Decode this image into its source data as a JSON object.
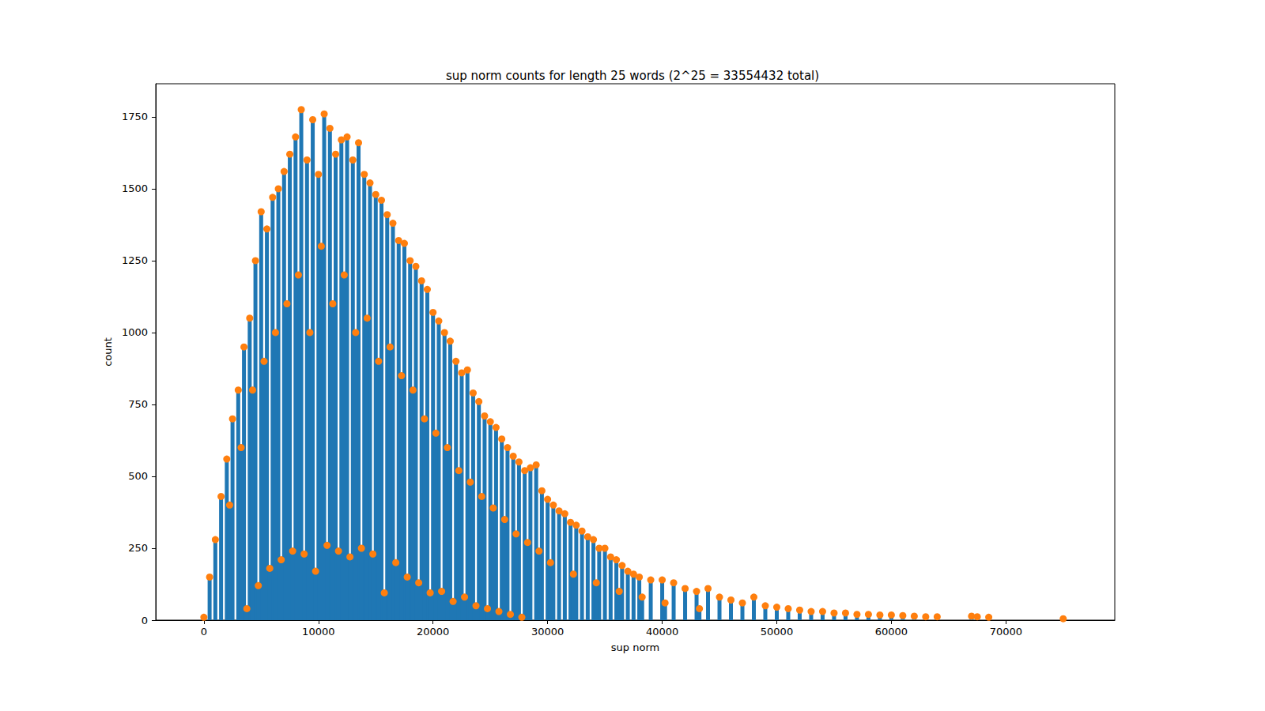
{
  "chart_data": {
    "type": "bar",
    "title": "sup norm counts for length 25 words (2^25 = 33554432 total)",
    "x_label": "sup norm",
    "y_label": "count",
    "xlim": [
      -4200,
      79500
    ],
    "xticks": [
      0,
      10000,
      20000,
      30000,
      40000,
      50000,
      60000,
      70000
    ],
    "ylim": [
      0,
      1865
    ],
    "yticks": [
      0,
      250,
      500,
      750,
      1000,
      1250,
      1500,
      1750
    ],
    "grid": false,
    "x": [
      0,
      500,
      1000,
      1500,
      2000,
      2500,
      3000,
      3500,
      4000,
      4500,
      5000,
      5500,
      6000,
      6500,
      7000,
      7500,
      8000,
      8500,
      9000,
      9500,
      10000,
      10500,
      11000,
      11500,
      12000,
      12500,
      13000,
      13500,
      14000,
      14500,
      15000,
      15500,
      16000,
      16500,
      17000,
      17500,
      18000,
      18500,
      19000,
      19500,
      20000,
      20500,
      21000,
      21500,
      22000,
      22500,
      23000,
      23500,
      24000,
      24500,
      25000,
      25500,
      26000,
      26500,
      27000,
      27500,
      28000,
      28500,
      29000,
      29500,
      30000,
      30500,
      31000,
      31500,
      32000,
      32500,
      33000,
      33500,
      34000,
      34500,
      35000,
      35500,
      36000,
      36500,
      37000,
      37500,
      38000,
      39000,
      40000,
      41000,
      42000,
      43000,
      44000,
      45000,
      46000,
      47000,
      48000,
      49000,
      50000,
      51000,
      52000,
      53000,
      54000,
      55000,
      56000,
      57000,
      58000,
      59000,
      60000,
      61000,
      62000,
      63000,
      64000,
      67000,
      67500,
      68500,
      75000,
      2250,
      3250,
      4250,
      5250,
      6250,
      7250,
      8250,
      9250,
      10250,
      11250,
      12250,
      13250,
      14250,
      15250,
      16250,
      17250,
      18250,
      19250,
      20250,
      21250,
      22250,
      23250,
      24250,
      25250,
      26250,
      27250,
      28250,
      29250,
      30250,
      32250,
      34250,
      36250,
      38250,
      40250,
      43250,
      3750,
      4750,
      5750,
      6750,
      7750,
      8750,
      9750,
      10750,
      11750,
      12750,
      13750,
      14750,
      15750,
      16750,
      17750,
      18750,
      19750,
      20750,
      21750,
      22750,
      23750,
      24750,
      25750,
      26750,
      27750
    ],
    "series": [
      {
        "type": "bar",
        "color": "#1f77b4",
        "values": [
          10,
          150,
          280,
          430,
          560,
          700,
          800,
          950,
          1050,
          1250,
          1420,
          1360,
          1470,
          1500,
          1560,
          1620,
          1680,
          1775,
          1600,
          1740,
          1550,
          1760,
          1710,
          1620,
          1670,
          1680,
          1600,
          1660,
          1550,
          1520,
          1480,
          1460,
          1410,
          1380,
          1320,
          1310,
          1250,
          1230,
          1180,
          1150,
          1070,
          1040,
          1000,
          970,
          900,
          860,
          870,
          790,
          760,
          710,
          690,
          670,
          630,
          600,
          570,
          550,
          520,
          530,
          540,
          450,
          420,
          400,
          380,
          370,
          340,
          330,
          310,
          290,
          280,
          250,
          250,
          220,
          210,
          190,
          170,
          160,
          150,
          140,
          140,
          130,
          110,
          100,
          110,
          80,
          70,
          60,
          80,
          50,
          45,
          40,
          35,
          30,
          30,
          25,
          25,
          20,
          20,
          18,
          18,
          16,
          14,
          12,
          12,
          14,
          12,
          10,
          5,
          400,
          600,
          800,
          900,
          1000,
          1100,
          1200,
          1000,
          1300,
          1100,
          1200,
          1000,
          1050,
          900,
          950,
          850,
          800,
          700,
          650,
          600,
          520,
          480,
          430,
          390,
          350,
          300,
          270,
          240,
          200,
          160,
          130,
          100,
          80,
          60,
          40,
          40,
          120,
          180,
          210,
          240,
          230,
          170,
          260,
          240,
          220,
          250,
          230,
          95,
          200,
          150,
          130,
          95,
          100,
          65,
          80,
          50,
          40,
          30,
          20,
          10
        ]
      },
      {
        "type": "scatter",
        "color": "#ff7f0e",
        "marker": "circle",
        "values": [
          10,
          150,
          280,
          430,
          560,
          700,
          800,
          950,
          1050,
          1250,
          1420,
          1360,
          1470,
          1500,
          1560,
          1620,
          1680,
          1775,
          1600,
          1740,
          1550,
          1760,
          1710,
          1620,
          1670,
          1680,
          1600,
          1660,
          1550,
          1520,
          1480,
          1460,
          1410,
          1380,
          1320,
          1310,
          1250,
          1230,
          1180,
          1150,
          1070,
          1040,
          1000,
          970,
          900,
          860,
          870,
          790,
          760,
          710,
          690,
          670,
          630,
          600,
          570,
          550,
          520,
          530,
          540,
          450,
          420,
          400,
          380,
          370,
          340,
          330,
          310,
          290,
          280,
          250,
          250,
          220,
          210,
          190,
          170,
          160,
          150,
          140,
          140,
          130,
          110,
          100,
          110,
          80,
          70,
          60,
          80,
          50,
          45,
          40,
          35,
          30,
          30,
          25,
          25,
          20,
          20,
          18,
          18,
          16,
          14,
          12,
          12,
          14,
          12,
          10,
          5,
          400,
          600,
          800,
          900,
          1000,
          1100,
          1200,
          1000,
          1300,
          1100,
          1200,
          1000,
          1050,
          900,
          950,
          850,
          800,
          700,
          650,
          600,
          520,
          480,
          430,
          390,
          350,
          300,
          270,
          240,
          200,
          160,
          130,
          100,
          80,
          60,
          40,
          40,
          120,
          180,
          210,
          240,
          230,
          170,
          260,
          240,
          220,
          250,
          230,
          95,
          200,
          150,
          130,
          95,
          100,
          65,
          80,
          50,
          40,
          30,
          20,
          10
        ]
      }
    ]
  }
}
